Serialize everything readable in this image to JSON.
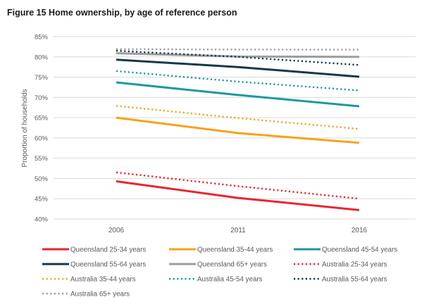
{
  "chart_data": {
    "type": "line",
    "title": "Figure 15 Home ownership, by age of reference person",
    "xlabel": "",
    "ylabel": "Proportion of households",
    "x": [
      "2006",
      "2011",
      "2016"
    ],
    "ylim": [
      40,
      85
    ],
    "yticks": [
      40,
      45,
      50,
      55,
      60,
      65,
      70,
      75,
      80,
      85
    ],
    "ytick_labels": [
      "40%",
      "45%",
      "50%",
      "55%",
      "60%",
      "65%",
      "70%",
      "75%",
      "80%",
      "85%"
    ],
    "grid": true,
    "legend_position": "bottom",
    "series": [
      {
        "name": "Queensland 25-34 years",
        "values": [
          49.3,
          45.2,
          42.2
        ],
        "color": "#e8262e",
        "style": "solid"
      },
      {
        "name": "Queensland 35-44 years",
        "values": [
          65.0,
          61.2,
          58.8
        ],
        "color": "#f7a21b",
        "style": "solid"
      },
      {
        "name": "Queensland 45-54 years",
        "values": [
          73.7,
          70.6,
          67.8
        ],
        "color": "#1a9aa0",
        "style": "solid"
      },
      {
        "name": "Queensland 55-64 years",
        "values": [
          79.3,
          77.5,
          75.1
        ],
        "color": "#16384a",
        "style": "solid"
      },
      {
        "name": "Queensland 65+ years",
        "values": [
          80.9,
          80.1,
          80.0
        ],
        "color": "#9d9d9d",
        "style": "solid"
      },
      {
        "name": "Australia 25-34 years",
        "values": [
          51.5,
          48.1,
          45.0
        ],
        "color": "#e8262e",
        "style": "dotted"
      },
      {
        "name": "Australia 35-44 years",
        "values": [
          67.9,
          64.9,
          62.2
        ],
        "color": "#f7a21b",
        "style": "dotted"
      },
      {
        "name": "Australia 45-54 years",
        "values": [
          76.5,
          73.9,
          71.7
        ],
        "color": "#1a9aa0",
        "style": "dotted"
      },
      {
        "name": "Australia 55-64 years",
        "values": [
          81.5,
          80.0,
          78.0
        ],
        "color": "#16384a",
        "style": "dotted"
      },
      {
        "name": "Australia 65+ years",
        "values": [
          81.9,
          81.8,
          81.8
        ],
        "color": "#9d9d9d",
        "style": "dotted"
      }
    ]
  }
}
